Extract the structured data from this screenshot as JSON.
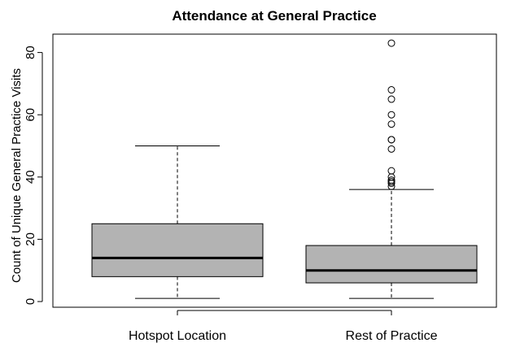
{
  "chart_data": {
    "type": "boxplot",
    "title": "Attendance at General Practice",
    "xlabel": "",
    "ylabel": "Count of Unique General Practice Visits",
    "ylim": [
      0,
      85
    ],
    "yticks": [
      0,
      20,
      40,
      60,
      80
    ],
    "grid": false,
    "box_color": "#b3b3b3",
    "categories": [
      "Hotspot Location",
      "Rest of Practice"
    ],
    "boxes": [
      {
        "category": "Hotspot Location",
        "whisker_low": 1,
        "q1": 8,
        "median": 14,
        "q3": 25,
        "whisker_high": 50,
        "outliers": []
      },
      {
        "category": "Rest of Practice",
        "whisker_low": 1,
        "q1": 6,
        "median": 10,
        "q3": 18,
        "whisker_high": 36,
        "outliers": [
          37,
          38,
          38.5,
          39,
          40,
          42,
          49,
          52,
          52,
          57,
          60,
          65,
          68,
          83
        ]
      }
    ]
  }
}
